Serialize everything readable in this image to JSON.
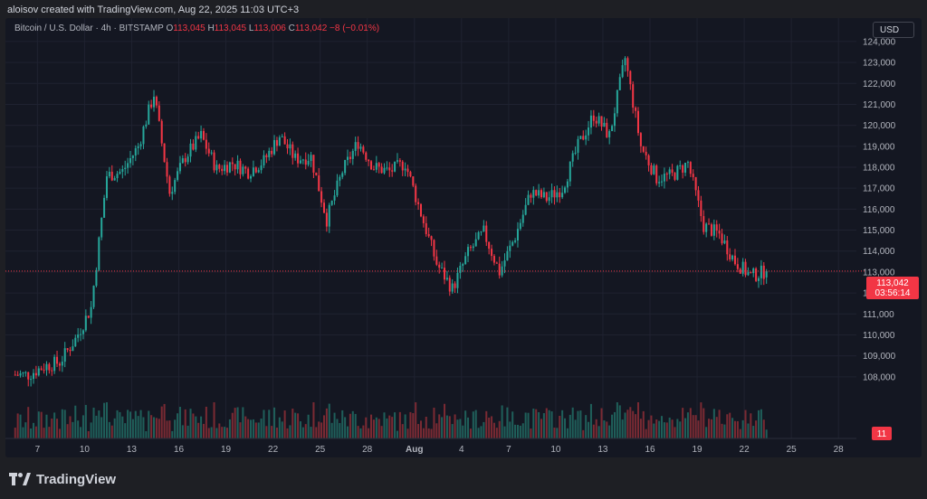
{
  "header": {
    "attribution": "aloisov created with TradingView.com, Aug 22, 2025 11:03 UTC+3"
  },
  "legend": {
    "symbol": "Bitcoin / U.S. Dollar · 4h · BITSTAMP",
    "o_label": "O",
    "o_value": "113,045",
    "h_label": "H",
    "h_value": "113,045",
    "l_label": "L",
    "l_value": "113,006",
    "c_label": "C",
    "c_value": "113,042",
    "change": "−8 (−0.01%)"
  },
  "currency_button": "USD",
  "price_tag": {
    "price": "113,042",
    "countdown": "03:56:14",
    "color": "#f23645"
  },
  "volume_tag": "11",
  "brand": {
    "name": "TradingView",
    "logo": "tradingview-logo"
  },
  "colors": {
    "up": "#26a69a",
    "down": "#f23645",
    "up_volume": "#1f5f5a",
    "down_volume": "#7a2a33",
    "grid": "#1f2230"
  },
  "chart_data": {
    "type": "candlestick",
    "interval": "4h",
    "ylim": [
      107000,
      124600
    ],
    "y_ticks": [
      "108,000",
      "109,000",
      "110,000",
      "111,000",
      "112,000",
      "113,000",
      "114,000",
      "115,000",
      "116,000",
      "117,000",
      "118,000",
      "119,000",
      "120,000",
      "121,000",
      "122,000",
      "123,000",
      "124,000"
    ],
    "x_ticks": [
      "7",
      "10",
      "13",
      "16",
      "19",
      "22",
      "25",
      "28",
      "Aug",
      "4",
      "7",
      "10",
      "13",
      "16",
      "19",
      "22",
      "25",
      "28"
    ],
    "current_price": 113042,
    "grid": true,
    "points": [
      {
        "x": "Jul 6",
        "y": 108100
      },
      {
        "x": "Jul 7",
        "y": 108500
      },
      {
        "x": "Jul 8",
        "y": 108700
      },
      {
        "x": "Jul 9",
        "y": 109800
      },
      {
        "x": "Jul 10",
        "y": 111300
      },
      {
        "x": "Jul 11",
        "y": 117600
      },
      {
        "x": "Jul 12",
        "y": 117800
      },
      {
        "x": "Jul 13",
        "y": 119000
      },
      {
        "x": "Jul 14",
        "y": 121500
      },
      {
        "x": "Jul 15",
        "y": 116800
      },
      {
        "x": "Jul 16",
        "y": 118500
      },
      {
        "x": "Jul 17",
        "y": 119500
      },
      {
        "x": "Jul 18",
        "y": 117900
      },
      {
        "x": "Jul 19",
        "y": 118200
      },
      {
        "x": "Jul 20",
        "y": 117800
      },
      {
        "x": "Jul 21",
        "y": 118300
      },
      {
        "x": "Jul 22",
        "y": 119500
      },
      {
        "x": "Jul 23",
        "y": 118400
      },
      {
        "x": "Jul 24",
        "y": 118500
      },
      {
        "x": "Jul 25",
        "y": 115500
      },
      {
        "x": "Jul 26",
        "y": 117800
      },
      {
        "x": "Jul 27",
        "y": 119200
      },
      {
        "x": "Jul 28",
        "y": 118000
      },
      {
        "x": "Jul 29",
        "y": 117800
      },
      {
        "x": "Jul 30",
        "y": 118200
      },
      {
        "x": "Jul 31",
        "y": 115800
      },
      {
        "x": "Aug 1",
        "y": 113400
      },
      {
        "x": "Aug 2",
        "y": 112200
      },
      {
        "x": "Aug 3",
        "y": 113900
      },
      {
        "x": "Aug 4",
        "y": 114900
      },
      {
        "x": "Aug 5",
        "y": 113000
      },
      {
        "x": "Aug 6",
        "y": 114700
      },
      {
        "x": "Aug 7",
        "y": 116800
      },
      {
        "x": "Aug 8",
        "y": 116500
      },
      {
        "x": "Aug 9",
        "y": 117000
      },
      {
        "x": "Aug 10",
        "y": 119000
      },
      {
        "x": "Aug 11",
        "y": 120500
      },
      {
        "x": "Aug 12",
        "y": 119500
      },
      {
        "x": "Aug 13",
        "y": 123200
      },
      {
        "x": "Aug 14",
        "y": 119000
      },
      {
        "x": "Aug 15",
        "y": 117500
      },
      {
        "x": "Aug 16",
        "y": 117600
      },
      {
        "x": "Aug 17",
        "y": 118200
      },
      {
        "x": "Aug 18",
        "y": 115200
      },
      {
        "x": "Aug 19",
        "y": 114800
      },
      {
        "x": "Aug 20",
        "y": 113500
      },
      {
        "x": "Aug 21",
        "y": 112800
      },
      {
        "x": "Aug 22",
        "y": 113042
      }
    ]
  }
}
